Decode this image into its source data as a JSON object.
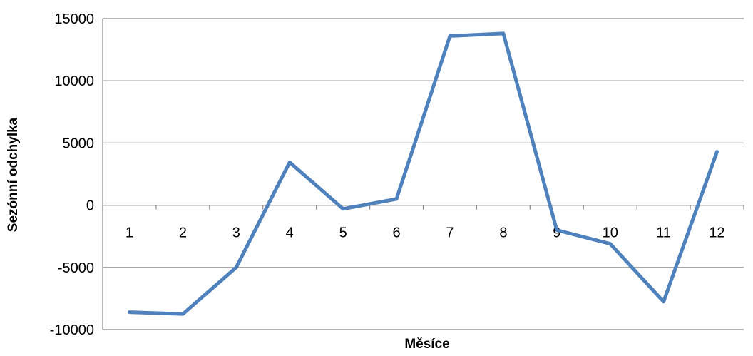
{
  "chart_data": {
    "type": "line",
    "title": "",
    "xlabel": "Měsíce",
    "ylabel": "Sezónní odchylka",
    "categories": [
      "1",
      "2",
      "3",
      "4",
      "5",
      "6",
      "7",
      "8",
      "9",
      "10",
      "11",
      "12"
    ],
    "series": [
      {
        "values": [
          -8600,
          -8750,
          -5000,
          3450,
          -300,
          500,
          13600,
          13800,
          -2000,
          -3100,
          -7750,
          4300
        ],
        "color": "#4F81BD"
      }
    ],
    "ylim": [
      -10000,
      15000
    ],
    "yticks": [
      -10000,
      -5000,
      0,
      5000,
      10000,
      15000
    ],
    "ytick_labels": [
      "-10000",
      "-5000",
      "0",
      "5000",
      "10000",
      "15000"
    ],
    "grid": true,
    "legend": "none",
    "colors": {
      "gridline": "#888888",
      "axis": "#888888"
    }
  }
}
